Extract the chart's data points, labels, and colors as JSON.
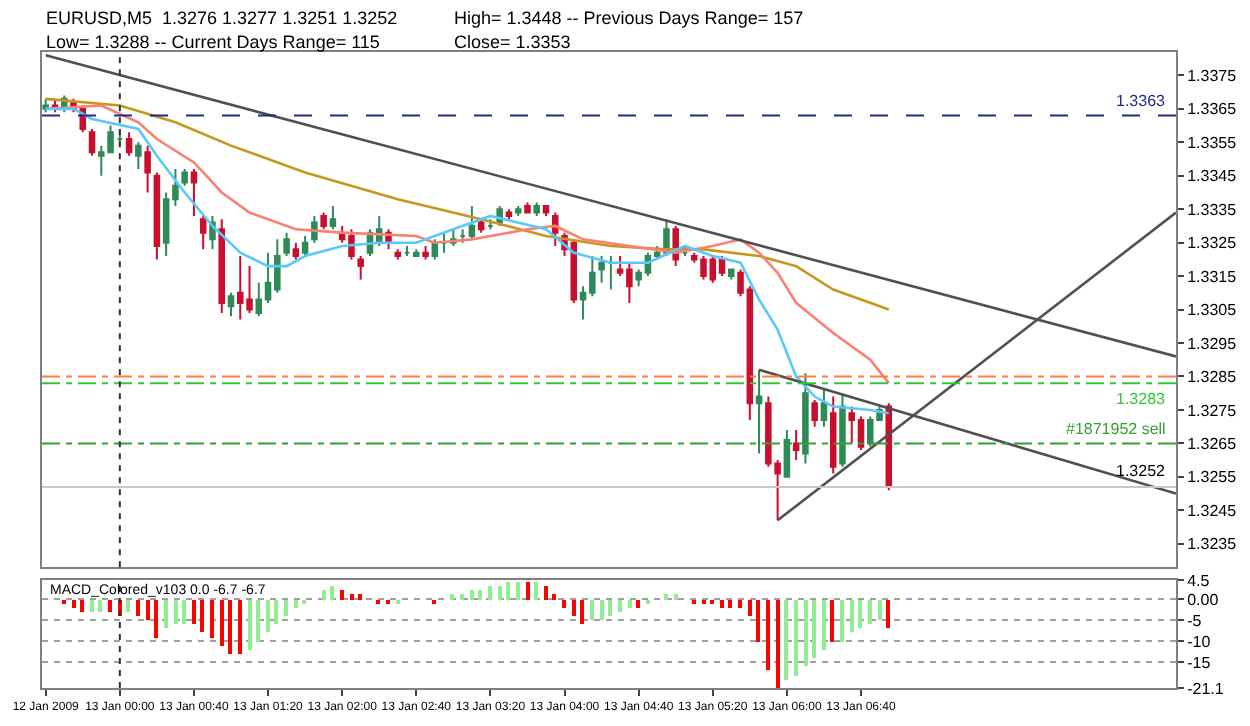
{
  "chart_data": [
    {
      "type": "candlestick",
      "annotations": [
        "EURUSD,M5  1.3276 1.3277 1.3251 1.3252",
        "High= 1.3448 -- Previous Days Range= 157",
        "Low= 1.3288 -- Current Days Range= 115",
        "Close= 1.3353"
      ],
      "colors": [
        "#2e8b57",
        "#c8102e",
        "#2e8b57",
        "#c8102e",
        "#c8102e",
        "#c8102e",
        "#2e8b57",
        "#2e8b57",
        "#2e8b57",
        "#c8102e",
        "#2e8b57",
        "#c8102e",
        "#c8102e",
        "#2e8b57",
        "#2e8b57",
        "#2e8b57",
        "#c8102e",
        "#c8102e",
        "#2e8b57",
        "#c8102e",
        "#2e8b57",
        "#c8102e",
        "#c8102e",
        "#2e8b57",
        "#2e8b57",
        "#2e8b57",
        "#2e8b57",
        "#c8102e",
        "#2e8b57",
        "#2e8b57",
        "#c8102e",
        "#2e8b57",
        "#c8102e",
        "#c8102e",
        "#c8102e",
        "#2e8b57",
        "#2e8b57",
        "#c8102e",
        "#c8102e",
        "#2e8b57",
        "#2e8b57",
        "#c8102e",
        "#2e8b57",
        "#2e8b57",
        "#2e8b57",
        "#2e8b57",
        "#2e8b57",
        "#c8102e",
        "#2e8b57",
        "#2e8b57",
        "#c8102e",
        "#2e8b57",
        "#c8102e",
        "#2e8b57",
        "#c8102e",
        "#c8102e",
        "#c8102e",
        "#c8102e",
        "#2e8b57",
        "#2e8b57",
        "#2e8b57",
        "#2e8b57",
        "#c8102e",
        "#c8102e",
        "#2e8b57",
        "#2e8b57",
        "#2e8b57",
        "#2e8b57",
        "#c8102e",
        "#2e8b57",
        "#c8102e",
        "#c8102e",
        "#c8102e",
        "#c8102e",
        "#2e8b57",
        "#c8102e",
        "#c8102e",
        "#2e8b57",
        "#c8102e",
        "#c8102e",
        "#2e8b57",
        "#c8102e",
        "#2e8b57",
        "#c8102e",
        "#2e8b57",
        "#c8102e",
        "#2e8b57",
        "#c8102e",
        "#c8102e",
        "#2e8b57",
        "#2e8b57",
        "#c8102e"
      ],
      "x": [
        "2009-01-12T23:20",
        "2009-01-12T23:25",
        "2009-01-12T23:30",
        "2009-01-12T23:35",
        "2009-01-12T23:40",
        "2009-01-12T23:45",
        "2009-01-12T23:50",
        "2009-01-12T23:55",
        "2009-01-13T00:00",
        "2009-01-13T00:05",
        "2009-01-13T00:10",
        "2009-01-13T00:15",
        "2009-01-13T00:20",
        "2009-01-13T00:25",
        "2009-01-13T00:30",
        "2009-01-13T00:35",
        "2009-01-13T00:40",
        "2009-01-13T00:45",
        "2009-01-13T00:50",
        "2009-01-13T00:55",
        "2009-01-13T01:00",
        "2009-01-13T01:05",
        "2009-01-13T01:10",
        "2009-01-13T01:15",
        "2009-01-13T01:20",
        "2009-01-13T01:25",
        "2009-01-13T01:30",
        "2009-01-13T01:35",
        "2009-01-13T01:40",
        "2009-01-13T01:45",
        "2009-01-13T01:50",
        "2009-01-13T01:55",
        "2009-01-13T02:00",
        "2009-01-13T02:05",
        "2009-01-13T02:10",
        "2009-01-13T02:15",
        "2009-01-13T02:20",
        "2009-01-13T02:25",
        "2009-01-13T02:30",
        "2009-01-13T02:35",
        "2009-01-13T02:40",
        "2009-01-13T02:45",
        "2009-01-13T02:50",
        "2009-01-13T02:55",
        "2009-01-13T03:00",
        "2009-01-13T03:05",
        "2009-01-13T03:10",
        "2009-01-13T03:15",
        "2009-01-13T03:20",
        "2009-01-13T03:25",
        "2009-01-13T03:30",
        "2009-01-13T03:35",
        "2009-01-13T03:40",
        "2009-01-13T03:45",
        "2009-01-13T03:50",
        "2009-01-13T03:55",
        "2009-01-13T04:00",
        "2009-01-13T04:05",
        "2009-01-13T04:10",
        "2009-01-13T04:15",
        "2009-01-13T04:20",
        "2009-01-13T04:25",
        "2009-01-13T04:30",
        "2009-01-13T04:35",
        "2009-01-13T04:40",
        "2009-01-13T04:45",
        "2009-01-13T04:50",
        "2009-01-13T04:55",
        "2009-01-13T05:00",
        "2009-01-13T05:05",
        "2009-01-13T05:10",
        "2009-01-13T05:15",
        "2009-01-13T05:20",
        "2009-01-13T05:25",
        "2009-01-13T05:30",
        "2009-01-13T05:35",
        "2009-01-13T05:40",
        "2009-01-13T05:45",
        "2009-01-13T05:50",
        "2009-01-13T05:55",
        "2009-01-13T06:00",
        "2009-01-13T06:05",
        "2009-01-13T06:10",
        "2009-01-13T06:15",
        "2009-01-13T06:20",
        "2009-01-13T06:25",
        "2009-01-13T06:30",
        "2009-01-13T06:35",
        "2009-01-13T06:40",
        "2009-01-13T06:45",
        "2009-01-13T06:50",
        "2009-01-13T06:55"
      ],
      "ohlc": [
        [
          1.3365,
          1.3368,
          1.3364,
          1.3366
        ],
        [
          1.3366,
          1.3368,
          1.3364,
          1.3365
        ],
        [
          1.3365,
          1.3369,
          1.3364,
          1.3368
        ],
        [
          1.3367,
          1.3368,
          1.3364,
          1.3365
        ],
        [
          1.3365,
          1.3366,
          1.3358,
          1.3359
        ],
        [
          1.3358,
          1.3359,
          1.3351,
          1.3352
        ],
        [
          1.3351,
          1.3354,
          1.3345,
          1.3352
        ],
        [
          1.3352,
          1.336,
          1.3352,
          1.3358
        ],
        [
          1.3356,
          1.3359,
          1.3354,
          1.3356
        ],
        [
          1.3356,
          1.3358,
          1.3351,
          1.3352
        ],
        [
          1.3351,
          1.3355,
          1.3347,
          1.3354
        ],
        [
          1.3352,
          1.3354,
          1.334,
          1.3346
        ],
        [
          1.3345,
          1.3346,
          1.332,
          1.3324
        ],
        [
          1.3325,
          1.334,
          1.3321,
          1.3338
        ],
        [
          1.3338,
          1.3347,
          1.3336,
          1.3342
        ],
        [
          1.3343,
          1.3347,
          1.3342,
          1.3346
        ],
        [
          1.3346,
          1.3347,
          1.3333,
          1.3343
        ],
        [
          1.3332,
          1.3333,
          1.3323,
          1.3328
        ],
        [
          1.3326,
          1.3333,
          1.3323,
          1.3331
        ],
        [
          1.3329,
          1.3332,
          1.3304,
          1.3307
        ],
        [
          1.3306,
          1.331,
          1.3303,
          1.3309
        ],
        [
          1.331,
          1.3321,
          1.3302,
          1.3307
        ],
        [
          1.3308,
          1.3318,
          1.3304,
          1.3305
        ],
        [
          1.3304,
          1.3313,
          1.3303,
          1.3308
        ],
        [
          1.3308,
          1.3322,
          1.3307,
          1.3313
        ],
        [
          1.3311,
          1.3326,
          1.331,
          1.3321
        ],
        [
          1.3322,
          1.3328,
          1.3321,
          1.3326
        ],
        [
          1.3323,
          1.3325,
          1.332,
          1.3321
        ],
        [
          1.3322,
          1.3327,
          1.3321,
          1.3325
        ],
        [
          1.3326,
          1.3333,
          1.3325,
          1.3331
        ],
        [
          1.3333,
          1.3334,
          1.3329,
          1.333
        ],
        [
          1.333,
          1.3336,
          1.3329,
          1.3332
        ],
        [
          1.3328,
          1.333,
          1.3325,
          1.3326
        ],
        [
          1.3327,
          1.3329,
          1.332,
          1.3321
        ],
        [
          1.332,
          1.3321,
          1.3314,
          1.3318
        ],
        [
          1.3322,
          1.3329,
          1.3321,
          1.3328
        ],
        [
          1.3325,
          1.3333,
          1.3324,
          1.3329
        ],
        [
          1.3328,
          1.3329,
          1.3323,
          1.3325
        ],
        [
          1.3322,
          1.3323,
          1.332,
          1.3321
        ],
        [
          1.3322,
          1.3324,
          1.3321,
          1.3322
        ],
        [
          1.3321,
          1.3323,
          1.3321,
          1.3322
        ],
        [
          1.3322,
          1.3324,
          1.332,
          1.3321
        ],
        [
          1.3321,
          1.3326,
          1.332,
          1.3325
        ],
        [
          1.3325,
          1.3328,
          1.3322,
          1.3325
        ],
        [
          1.3325,
          1.3329,
          1.3324,
          1.3326
        ],
        [
          1.3327,
          1.3329,
          1.3325,
          1.3327
        ],
        [
          1.3327,
          1.3336,
          1.3326,
          1.333
        ],
        [
          1.3331,
          1.3332,
          1.3328,
          1.3329
        ],
        [
          1.333,
          1.3332,
          1.3329,
          1.333
        ],
        [
          1.3331,
          1.3336,
          1.333,
          1.3335
        ],
        [
          1.3334,
          1.3335,
          1.3332,
          1.3333
        ],
        [
          1.3334,
          1.3336,
          1.3333,
          1.3335
        ],
        [
          1.3336,
          1.3337,
          1.3334,
          1.3334
        ],
        [
          1.3334,
          1.3337,
          1.3333,
          1.3336
        ],
        [
          1.3336,
          1.3336,
          1.3333,
          1.3334
        ],
        [
          1.3333,
          1.3334,
          1.3324,
          1.3328
        ],
        [
          1.3327,
          1.3328,
          1.3321,
          1.3323
        ],
        [
          1.3325,
          1.3326,
          1.3307,
          1.3308
        ],
        [
          1.3308,
          1.3312,
          1.3302,
          1.331
        ],
        [
          1.331,
          1.3321,
          1.3309,
          1.3316
        ],
        [
          1.3317,
          1.3321,
          1.3313,
          1.3319
        ],
        [
          1.3319,
          1.3321,
          1.3311,
          1.3319
        ],
        [
          1.3317,
          1.3321,
          1.3315,
          1.3316
        ],
        [
          1.3317,
          1.3319,
          1.3307,
          1.3312
        ],
        [
          1.3314,
          1.3317,
          1.3312,
          1.3316
        ],
        [
          1.3316,
          1.3322,
          1.3315,
          1.3321
        ],
        [
          1.3321,
          1.3324,
          1.332,
          1.3322
        ],
        [
          1.3322,
          1.3332,
          1.3321,
          1.3329
        ],
        [
          1.3329,
          1.333,
          1.3318,
          1.332
        ],
        [
          1.3322,
          1.3324,
          1.3321,
          1.3322
        ],
        [
          1.3321,
          1.3322,
          1.3319,
          1.332
        ],
        [
          1.332,
          1.3321,
          1.3314,
          1.3315
        ],
        [
          1.332,
          1.3321,
          1.3313,
          1.3314
        ],
        [
          1.332,
          1.3321,
          1.3315,
          1.3316
        ],
        [
          1.3315,
          1.3317,
          1.3314,
          1.3317
        ],
        [
          1.3316,
          1.3317,
          1.3309,
          1.331
        ],
        [
          1.3311,
          1.3312,
          1.3272,
          1.3277
        ],
        [
          1.3277,
          1.3287,
          1.3262,
          1.3279
        ],
        [
          1.3277,
          1.3279,
          1.3258,
          1.3259
        ],
        [
          1.3259,
          1.326,
          1.3242,
          1.3256
        ],
        [
          1.3255,
          1.3269,
          1.3255,
          1.3266
        ],
        [
          1.3265,
          1.3269,
          1.326,
          1.3263
        ],
        [
          1.3262,
          1.3286,
          1.3259,
          1.328
        ],
        [
          1.3277,
          1.3278,
          1.327,
          1.3272
        ],
        [
          1.3272,
          1.3281,
          1.327,
          1.3277
        ],
        [
          1.3274,
          1.3279,
          1.3256,
          1.3258
        ],
        [
          1.3259,
          1.328,
          1.3258,
          1.3276
        ],
        [
          1.3274,
          1.3276,
          1.3265,
          1.3272
        ],
        [
          1.3272,
          1.3273,
          1.3263,
          1.3264
        ],
        [
          1.3265,
          1.3273,
          1.3264,
          1.3272
        ],
        [
          1.3272,
          1.3276,
          1.3272,
          1.3275
        ],
        [
          1.3276,
          1.3277,
          1.3251,
          1.3252
        ]
      ],
      "series": [
        {
          "type": "line",
          "color": "#c8961e",
          "x": [
            "2009-01-12T23:20",
            "2009-01-13T00:00",
            "2009-01-13T00:30",
            "2009-01-13T01:00",
            "2009-01-13T01:40",
            "2009-01-13T02:30",
            "2009-01-13T03:15",
            "2009-01-13T03:50",
            "2009-01-13T04:25",
            "2009-01-13T04:55",
            "2009-01-13T05:15",
            "2009-01-13T05:45",
            "2009-01-13T06:05",
            "2009-01-13T06:25",
            "2009-01-13T06:55"
          ],
          "values": [
            1.3368,
            1.3366,
            1.3361,
            1.3354,
            1.3346,
            1.3338,
            1.3332,
            1.3327,
            1.3324,
            1.3323,
            1.3323,
            1.3321,
            1.3318,
            1.3311,
            1.3305
          ]
        },
        {
          "type": "line",
          "color": "#fa8072",
          "x": [
            "2009-01-12T23:20",
            "2009-01-12T23:50",
            "2009-01-13T00:10",
            "2009-01-13T00:20",
            "2009-01-13T00:40",
            "2009-01-13T00:55",
            "2009-01-13T01:10",
            "2009-01-13T01:35",
            "2009-01-13T02:00",
            "2009-01-13T02:40",
            "2009-01-13T02:50",
            "2009-01-13T03:10",
            "2009-01-13T03:40",
            "2009-01-13T03:55",
            "2009-01-13T04:10",
            "2009-01-13T04:35",
            "2009-01-13T05:00",
            "2009-01-13T05:20",
            "2009-01-13T05:35",
            "2009-01-13T05:45",
            "2009-01-13T05:55",
            "2009-01-13T06:05",
            "2009-01-13T06:25",
            "2009-01-13T06:45",
            "2009-01-13T06:55"
          ],
          "values": [
            1.3365,
            1.3366,
            1.3361,
            1.3356,
            1.3349,
            1.334,
            1.3334,
            1.3329,
            1.3328,
            1.3327,
            1.3325,
            1.3326,
            1.3329,
            1.333,
            1.3326,
            1.3324,
            1.3322,
            1.3324,
            1.3326,
            1.3322,
            1.3316,
            1.3307,
            1.3298,
            1.329,
            1.3283
          ]
        },
        {
          "type": "line",
          "color": "#5ac8fa",
          "x": [
            "2009-01-12T23:20",
            "2009-01-12T23:35",
            "2009-01-12T23:45",
            "2009-01-13T00:10",
            "2009-01-13T00:20",
            "2009-01-13T00:35",
            "2009-01-13T00:50",
            "2009-01-13T01:05",
            "2009-01-13T01:20",
            "2009-01-13T01:30",
            "2009-01-13T01:40",
            "2009-01-13T02:00",
            "2009-01-13T02:20",
            "2009-01-13T02:40",
            "2009-01-13T03:00",
            "2009-01-13T03:20",
            "2009-01-13T03:50",
            "2009-01-13T04:05",
            "2009-01-13T04:25",
            "2009-01-13T04:45",
            "2009-01-13T05:05",
            "2009-01-13T05:20",
            "2009-01-13T05:35",
            "2009-01-13T05:45",
            "2009-01-13T05:55",
            "2009-01-13T06:05",
            "2009-01-13T06:15",
            "2009-01-13T06:25",
            "2009-01-13T06:45",
            "2009-01-13T06:55"
          ],
          "values": [
            1.3365,
            1.3365,
            1.3362,
            1.3359,
            1.3351,
            1.334,
            1.333,
            1.3322,
            1.3318,
            1.3318,
            1.3321,
            1.3324,
            1.3325,
            1.3325,
            1.3329,
            1.3333,
            1.3329,
            1.3322,
            1.3319,
            1.3319,
            1.3324,
            1.3321,
            1.3319,
            1.3308,
            1.3299,
            1.3285,
            1.3279,
            1.3276,
            1.3275,
            1.3274
          ]
        },
        {
          "type": "line",
          "color": "#505050",
          "x": [
            "2009-01-12T23:20",
            "2009-01-13T09:30"
          ],
          "values": [
            1.3381,
            1.3291
          ]
        },
        {
          "type": "line",
          "color": "#505050",
          "x": [
            "2009-01-13T05:45",
            "2009-01-13T09:30"
          ],
          "values": [
            1.3287,
            1.325
          ]
        },
        {
          "type": "line",
          "color": "#505050",
          "x": [
            "2009-01-13T05:55",
            "2009-01-13T09:30"
          ],
          "values": [
            1.3242,
            1.3334
          ]
        }
      ],
      "ref_lines": [
        {
          "axis": "y",
          "value": 1.3363,
          "label": "1.3363",
          "color": "#1e2a8c",
          "line_style": "dashed"
        },
        {
          "axis": "y",
          "value": 1.3285,
          "color": "#ff7f3f",
          "line_style": "dashdot"
        },
        {
          "axis": "y",
          "value": 1.3283,
          "label": "1.3283",
          "color": "#32c832",
          "line_style": "dashdot"
        },
        {
          "axis": "y",
          "value": 1.3265,
          "label": "#1871952 sell",
          "color": "#32a032",
          "line_style": "dashdot"
        },
        {
          "axis": "y",
          "value": 1.3252,
          "label": "1.3252",
          "color": "#c8c8c8",
          "line_style": "solid"
        },
        {
          "axis": "x",
          "value": "2009-01-13T00:00",
          "color": "#303030",
          "line_style": "dotted"
        }
      ],
      "xlim": [
        "2009-01-12T23:18",
        "2009-01-13T09:30"
      ],
      "ylim": [
        1.3228,
        1.3382
      ],
      "yticks": [
        1.3235,
        1.3245,
        1.3255,
        1.3265,
        1.3275,
        1.3285,
        1.3295,
        1.3305,
        1.3315,
        1.3325,
        1.3335,
        1.3345,
        1.3355,
        1.3365,
        1.3375
      ],
      "tick_labels": "y",
      "grid": false
    },
    {
      "type": "bar",
      "annotations": [
        "MACD_Colored_v103 0.0 -6.7 -6.7"
      ],
      "x": [
        "2009-01-12T23:20",
        "2009-01-12T23:25",
        "2009-01-12T23:30",
        "2009-01-12T23:35",
        "2009-01-12T23:40",
        "2009-01-12T23:45",
        "2009-01-12T23:50",
        "2009-01-12T23:55",
        "2009-01-13T00:00",
        "2009-01-13T00:05",
        "2009-01-13T00:10",
        "2009-01-13T00:15",
        "2009-01-13T00:20",
        "2009-01-13T00:25",
        "2009-01-13T00:30",
        "2009-01-13T00:35",
        "2009-01-13T00:40",
        "2009-01-13T00:45",
        "2009-01-13T00:50",
        "2009-01-13T00:55",
        "2009-01-13T01:00",
        "2009-01-13T01:05",
        "2009-01-13T01:10",
        "2009-01-13T01:15",
        "2009-01-13T01:20",
        "2009-01-13T01:25",
        "2009-01-13T01:30",
        "2009-01-13T01:35",
        "2009-01-13T01:40",
        "2009-01-13T01:45",
        "2009-01-13T01:50",
        "2009-01-13T01:55",
        "2009-01-13T02:00",
        "2009-01-13T02:05",
        "2009-01-13T02:10",
        "2009-01-13T02:15",
        "2009-01-13T02:20",
        "2009-01-13T02:25",
        "2009-01-13T02:30",
        "2009-01-13T02:35",
        "2009-01-13T02:40",
        "2009-01-13T02:45",
        "2009-01-13T02:50",
        "2009-01-13T02:55",
        "2009-01-13T03:00",
        "2009-01-13T03:05",
        "2009-01-13T03:10",
        "2009-01-13T03:15",
        "2009-01-13T03:20",
        "2009-01-13T03:25",
        "2009-01-13T03:30",
        "2009-01-13T03:35",
        "2009-01-13T03:40",
        "2009-01-13T03:45",
        "2009-01-13T03:50",
        "2009-01-13T03:55",
        "2009-01-13T04:00",
        "2009-01-13T04:05",
        "2009-01-13T04:10",
        "2009-01-13T04:15",
        "2009-01-13T04:20",
        "2009-01-13T04:25",
        "2009-01-13T04:30",
        "2009-01-13T04:35",
        "2009-01-13T04:40",
        "2009-01-13T04:45",
        "2009-01-13T04:50",
        "2009-01-13T04:55",
        "2009-01-13T05:00",
        "2009-01-13T05:05",
        "2009-01-13T05:10",
        "2009-01-13T05:15",
        "2009-01-13T05:20",
        "2009-01-13T05:25",
        "2009-01-13T05:30",
        "2009-01-13T05:35",
        "2009-01-13T05:40",
        "2009-01-13T05:45",
        "2009-01-13T05:50",
        "2009-01-13T05:55",
        "2009-01-13T06:00",
        "2009-01-13T06:05",
        "2009-01-13T06:10",
        "2009-01-13T06:15",
        "2009-01-13T06:20",
        "2009-01-13T06:25",
        "2009-01-13T06:30",
        "2009-01-13T06:35",
        "2009-01-13T06:40",
        "2009-01-13T06:45",
        "2009-01-13T06:50",
        "2009-01-13T06:55"
      ],
      "values": [
        0,
        0,
        -1,
        -2,
        -3,
        -3,
        -3,
        -3,
        -4,
        -3,
        -4,
        -5,
        -9,
        -7,
        -6,
        -6,
        -6,
        -8,
        -9,
        -11,
        -13,
        -13,
        -12,
        -10,
        -8,
        -6,
        -4,
        -2,
        -1,
        0,
        2,
        3,
        2,
        1,
        1,
        0,
        -1,
        -1,
        -1,
        0,
        0,
        0,
        -1,
        0,
        1,
        1,
        2,
        2,
        3,
        3,
        4,
        4,
        4,
        4,
        3,
        1,
        -2,
        -4,
        -6,
        -5,
        -5,
        -4,
        -3,
        -2,
        -2,
        -1,
        0,
        1,
        1,
        0,
        -1,
        -1,
        -1,
        -2,
        -2,
        -2,
        -4,
        -10,
        -17,
        -21,
        -19,
        -18,
        -16,
        -14,
        -12,
        -10,
        -10,
        -8,
        -7,
        -6,
        -5,
        -6.7
      ],
      "colors": [
        "#90ee90",
        "#ff0000",
        "#ff0000",
        "#ff0000",
        "#ff0000",
        "#90ee90",
        "#90ee90",
        "#ff0000",
        "#ff0000",
        "#90ee90",
        "#ff0000",
        "#ff0000",
        "#ff0000",
        "#90ee90",
        "#90ee90",
        "#90ee90",
        "#ff0000",
        "#ff0000",
        "#ff0000",
        "#ff0000",
        "#ff0000",
        "#ff0000",
        "#90ee90",
        "#90ee90",
        "#90ee90",
        "#90ee90",
        "#90ee90",
        "#90ee90",
        "#90ee90",
        "#90ee90",
        "#90ee90",
        "#90ee90",
        "#ff0000",
        "#ff0000",
        "#ff0000",
        "#ff0000",
        "#ff0000",
        "#ff0000",
        "#90ee90",
        "#90ee90",
        "#90ee90",
        "#ff0000",
        "#ff0000",
        "#90ee90",
        "#90ee90",
        "#90ee90",
        "#90ee90",
        "#90ee90",
        "#90ee90",
        "#90ee90",
        "#90ee90",
        "#90ee90",
        "#ff0000",
        "#90ee90",
        "#ff0000",
        "#ff0000",
        "#ff0000",
        "#ff0000",
        "#ff0000",
        "#90ee90",
        "#90ee90",
        "#90ee90",
        "#90ee90",
        "#90ee90",
        "#ff0000",
        "#90ee90",
        "#90ee90",
        "#90ee90",
        "#90ee90",
        "#ff0000",
        "#ff0000",
        "#ff0000",
        "#ff0000",
        "#ff0000",
        "#ff0000",
        "#ff0000",
        "#ff0000",
        "#ff0000",
        "#ff0000",
        "#ff0000",
        "#90ee90",
        "#90ee90",
        "#90ee90",
        "#90ee90",
        "#90ee90",
        "#ff0000",
        "#90ee90",
        "#90ee90",
        "#90ee90",
        "#90ee90",
        "#90ee90",
        "#ff0000"
      ],
      "ref_lines": [
        {
          "axis": "x",
          "value": "2009-01-13T00:00",
          "color": "#303030",
          "line_style": "dotted"
        }
      ],
      "xlim": [
        "2009-01-12T23:18",
        "2009-01-13T09:30"
      ],
      "xticks": [
        {
          "value": "2009-01-12T23:20",
          "label": "12 Jan 2009"
        },
        {
          "value": "2009-01-13T00:00",
          "label": "13 Jan 00:00"
        },
        {
          "value": "2009-01-13T00:40",
          "label": "13 Jan 00:40"
        },
        {
          "value": "2009-01-13T01:20",
          "label": "13 Jan 01:20"
        },
        {
          "value": "2009-01-13T02:00",
          "label": "13 Jan 02:00"
        },
        {
          "value": "2009-01-13T02:40",
          "label": "13 Jan 02:40"
        },
        {
          "value": "2009-01-13T03:20",
          "label": "13 Jan 03:20"
        },
        {
          "value": "2009-01-13T04:00",
          "label": "13 Jan 04:00"
        },
        {
          "value": "2009-01-13T04:40",
          "label": "13 Jan 04:40"
        },
        {
          "value": "2009-01-13T05:20",
          "label": "13 Jan 05:20"
        },
        {
          "value": "2009-01-13T06:00",
          "label": "13 Jan 06:00"
        },
        {
          "value": "2009-01-13T06:40",
          "label": "13 Jan 06:40"
        }
      ],
      "ylim": [
        -21.1,
        4.5
      ],
      "yticks": [
        4.5,
        {
          "value": 0,
          "label": "0.00"
        },
        -5,
        -10,
        -15,
        -21.1
      ],
      "grid": "y"
    }
  ]
}
